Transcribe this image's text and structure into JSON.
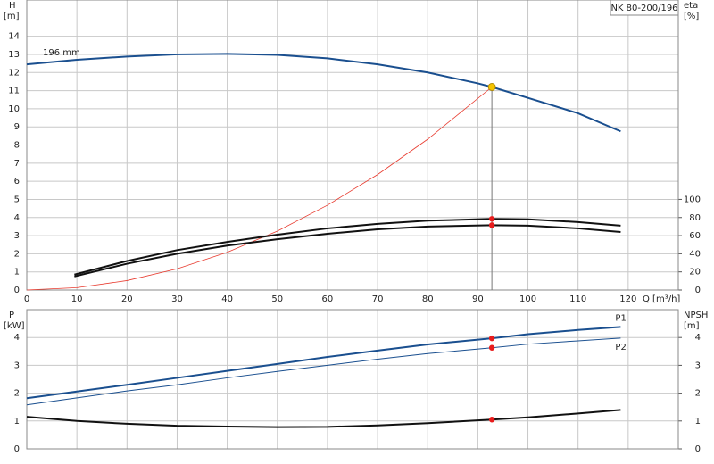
{
  "chart_data": [
    {
      "type": "line",
      "title": "NK 80-200/196",
      "y_label": "H",
      "y_unit": "[m]",
      "y2_label": "eta",
      "y2_unit": "[%]",
      "x_label": "Q [m³/h]",
      "xlim": [
        0,
        130
      ],
      "xticks": [
        0,
        10,
        20,
        30,
        40,
        50,
        60,
        70,
        80,
        90,
        100,
        110,
        120
      ],
      "ylim": [
        0,
        16
      ],
      "yticks": [
        0,
        1,
        2,
        3,
        4,
        5,
        6,
        7,
        8,
        9,
        10,
        11,
        12,
        13,
        14
      ],
      "y2lim": [
        0,
        320
      ],
      "y2ticks": [
        0,
        20,
        40,
        60,
        80,
        100
      ],
      "grid": true,
      "duty_point": {
        "x": 92.8,
        "y": 11.2,
        "color": "#f5c400"
      },
      "series": [
        {
          "name": "196 mm",
          "color": "#1a4f8f",
          "x": [
            0,
            10,
            20,
            30,
            40,
            50,
            60,
            70,
            80,
            90,
            92.8,
            100,
            110,
            118.5
          ],
          "values": [
            12.45,
            12.7,
            12.88,
            13.0,
            13.03,
            12.97,
            12.78,
            12.45,
            12.0,
            11.4,
            11.2,
            10.6,
            9.75,
            8.75
          ]
        },
        {
          "color": "#e83a2e",
          "x": [
            0,
            10,
            20,
            30,
            40,
            50,
            60,
            70,
            80,
            92.8
          ],
          "values": [
            0,
            0.13,
            0.52,
            1.17,
            2.08,
            3.25,
            4.68,
            6.37,
            8.32,
            11.2
          ]
        },
        {
          "color": "#111111",
          "axis": "y2",
          "duty_value": 78.5,
          "x": [
            9.5,
            20,
            30,
            40,
            50,
            60,
            70,
            80,
            92.8,
            100,
            110,
            118.5
          ],
          "values": [
            17,
            32,
            44,
            53,
            61,
            68,
            73,
            76.5,
            78.5,
            78,
            75,
            71
          ]
        },
        {
          "color": "#111111",
          "axis": "y2",
          "duty_value": 71.5,
          "x": [
            9.5,
            20,
            30,
            40,
            50,
            60,
            70,
            80,
            92.8,
            100,
            110,
            118.5
          ],
          "values": [
            15,
            29,
            40,
            49,
            56,
            62,
            67,
            70,
            71.5,
            71,
            68,
            64
          ]
        }
      ]
    },
    {
      "type": "line",
      "y_label": "P",
      "y_unit": "[kW]",
      "y2_label": "NPSH",
      "y2_unit": "[m]",
      "xlim": [
        0,
        130
      ],
      "xticks": [
        0,
        10,
        20,
        30,
        40,
        50,
        60,
        70,
        80,
        90,
        100,
        110,
        120
      ],
      "ylim": [
        0,
        5
      ],
      "yticks": [
        0,
        1,
        2,
        3,
        4
      ],
      "y2lim": [
        0,
        5
      ],
      "y2ticks": [
        0,
        1,
        2,
        3,
        4
      ],
      "grid": true,
      "duty_x": 92.8,
      "series": [
        {
          "name": "P1",
          "color": "#1a4f8f",
          "duty_value": 3.97,
          "x": [
            0,
            10,
            20,
            30,
            40,
            50,
            60,
            70,
            80,
            92.8,
            100,
            110,
            118.5
          ],
          "values": [
            1.82,
            2.06,
            2.3,
            2.55,
            2.8,
            3.05,
            3.3,
            3.53,
            3.75,
            3.97,
            4.12,
            4.27,
            4.38
          ]
        },
        {
          "name": "P2",
          "color": "#1a4f8f",
          "duty_value": 3.63,
          "x": [
            0,
            10,
            20,
            30,
            40,
            50,
            60,
            70,
            80,
            92.8,
            100,
            110,
            118.5
          ],
          "values": [
            1.58,
            1.83,
            2.08,
            2.3,
            2.55,
            2.78,
            3.0,
            3.22,
            3.42,
            3.63,
            3.76,
            3.88,
            3.98
          ]
        },
        {
          "color": "#111111",
          "axis": "y2",
          "duty_value": 1.05,
          "x": [
            0,
            10,
            20,
            30,
            40,
            50,
            60,
            70,
            80,
            92.8,
            100,
            110,
            118.5
          ],
          "values": [
            1.15,
            1.0,
            0.9,
            0.83,
            0.8,
            0.78,
            0.79,
            0.84,
            0.92,
            1.05,
            1.13,
            1.27,
            1.4
          ]
        }
      ]
    }
  ]
}
